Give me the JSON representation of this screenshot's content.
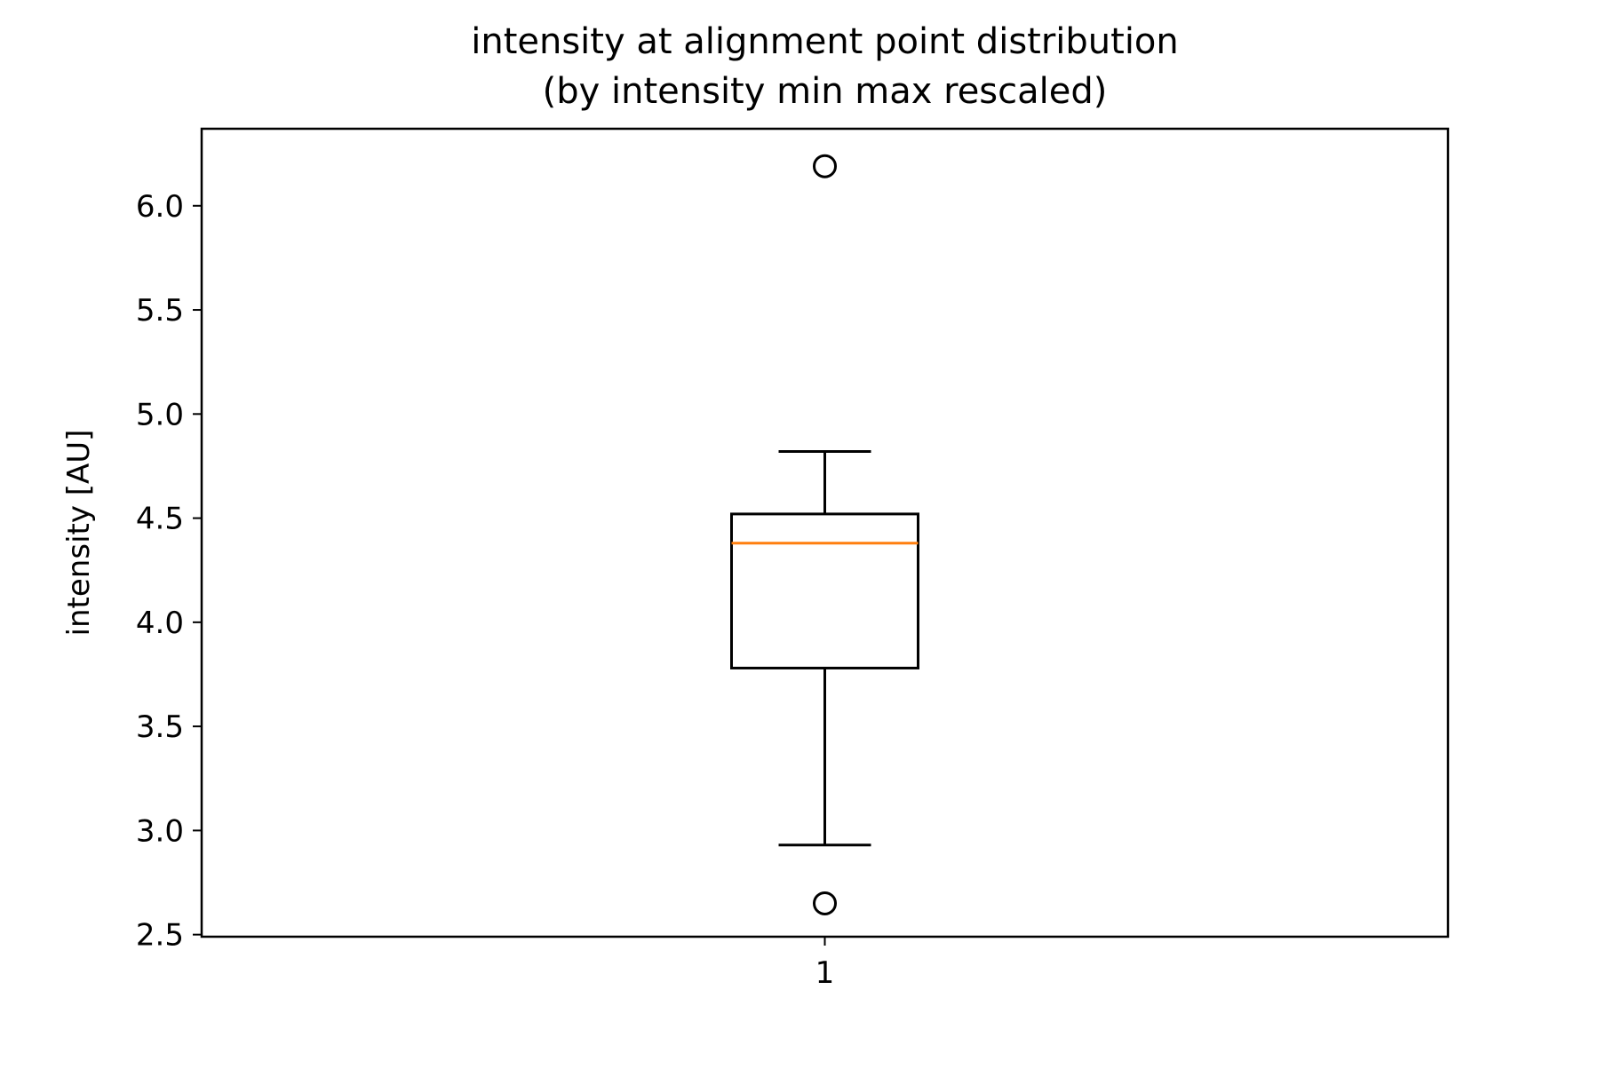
{
  "chart_data": {
    "type": "box",
    "title": "intensity at alignment point distribution\n(by intensity min max rescaled)",
    "xlabel": "",
    "ylabel": "intensity [AU]",
    "categories": [
      "1"
    ],
    "ylim": [
      2.49,
      6.37
    ],
    "yticks": [
      2.5,
      3.0,
      3.5,
      4.0,
      4.5,
      5.0,
      5.5,
      6.0
    ],
    "ytick_labels": [
      "2.5",
      "3.0",
      "3.5",
      "4.0",
      "4.5",
      "5.0",
      "5.5",
      "6.0"
    ],
    "boxes": [
      {
        "category": "1",
        "whisker_low": 2.93,
        "q1": 3.78,
        "median": 4.38,
        "q3": 4.52,
        "whisker_high": 4.82,
        "outliers": [
          6.19,
          2.65
        ]
      }
    ],
    "grid": false,
    "legend": "none",
    "colors": {
      "box": "#000000",
      "median": "#ff7f0e",
      "axes": "#000000",
      "background": "#ffffff"
    }
  }
}
